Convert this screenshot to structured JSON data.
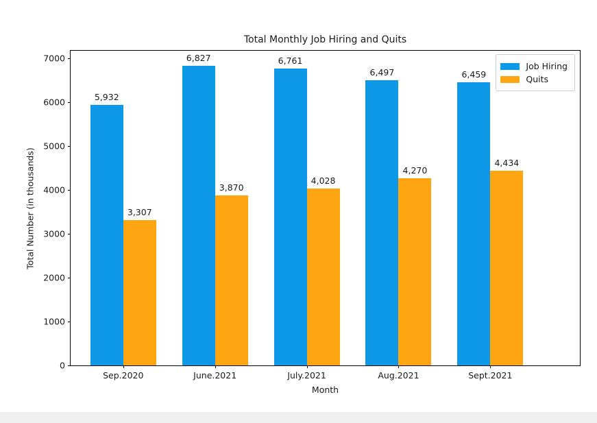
{
  "chart_data": {
    "type": "bar",
    "title": "Total Monthly Job Hiring and Quits",
    "xlabel": "Month",
    "ylabel": "Total Number (in thousands)",
    "categories": [
      "Sep.2020",
      "June.2021",
      "July.2021",
      "Aug.2021",
      "Sept.2021"
    ],
    "series": [
      {
        "name": "Job Hiring",
        "color": "#0E98E8",
        "values": [
          5932,
          6827,
          6761,
          6497,
          6459
        ]
      },
      {
        "name": "Quits",
        "color": "#FFA511",
        "values": [
          3307,
          3870,
          4028,
          4270,
          4434
        ]
      }
    ],
    "bar_value_labels": {
      "job_hiring": [
        "5,932",
        "6,827",
        "6,761",
        "6,497",
        "6,459"
      ],
      "quits": [
        "3,307",
        "3,870",
        "4,028",
        "4,270",
        "4,434"
      ]
    },
    "y_ticks": [
      0,
      1000,
      2000,
      3000,
      4000,
      5000,
      6000,
      7000
    ],
    "ylim": [
      0,
      7171
    ],
    "grid": false,
    "legend_position": "upper right",
    "colors": {
      "job_hiring": "#0E98E8",
      "quits": "#FFA511",
      "axis": "#000000",
      "text": "#1a1a1a",
      "legend_border": "#cccccc",
      "bottom_strip": "#efefef"
    }
  }
}
